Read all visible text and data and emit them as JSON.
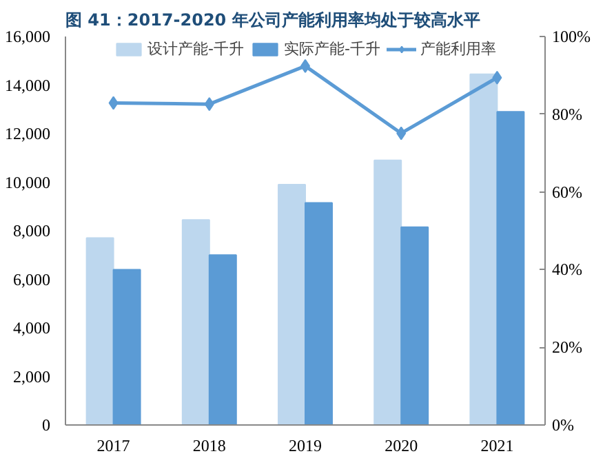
{
  "chart_data": {
    "type": "bar",
    "title": "图 41：2017-2020 年公司产能利用率均处于较高水平",
    "categories": [
      "2017",
      "2018",
      "2019",
      "2020",
      "2021"
    ],
    "series": [
      {
        "name": "设计产能-千升",
        "color": "#bdd7ee",
        "values": [
          7700,
          8450,
          9900,
          10900,
          14450
        ]
      },
      {
        "name": "实际产能-千升",
        "color": "#5b9bd5",
        "values": [
          6400,
          7000,
          9150,
          8150,
          12900
        ]
      },
      {
        "name": "产能利用率",
        "type": "line",
        "axis": "y2",
        "color": "#5b9bd5",
        "values": [
          82.9,
          82.6,
          92.4,
          75.1,
          89.4
        ]
      }
    ],
    "ylim": [
      0,
      16000
    ],
    "yticks": [
      0,
      {
        "value": 2000,
        "label": "2,000"
      },
      {
        "value": 4000,
        "label": "4,000"
      },
      {
        "value": 6000,
        "label": "6,000"
      },
      {
        "value": 8000,
        "label": "8,000"
      },
      {
        "value": 10000,
        "label": "10,000"
      },
      {
        "value": 12000,
        "label": "12,000"
      },
      {
        "value": 14000,
        "label": "14,000"
      },
      {
        "value": 16000,
        "label": "16,000"
      }
    ],
    "y2lim": [
      0,
      100
    ],
    "y2ticks": [
      {
        "value": 0,
        "label": "0%"
      },
      {
        "value": 20,
        "label": "20%"
      },
      {
        "value": 40,
        "label": "40%"
      },
      {
        "value": 60,
        "label": "60%"
      },
      {
        "value": 80,
        "label": "80%"
      },
      {
        "value": 100,
        "label": "100%"
      }
    ],
    "legend": "top",
    "marker": "diamond"
  }
}
